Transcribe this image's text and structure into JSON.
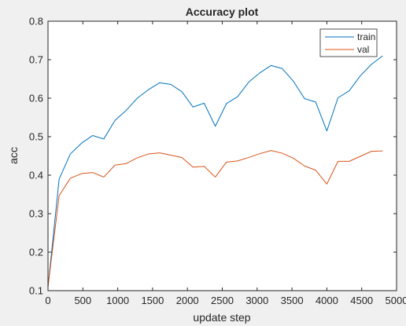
{
  "chart_data": {
    "type": "line",
    "title": "Accuracy plot",
    "xlabel": "update step",
    "ylabel": "acc",
    "xlim": [
      0,
      5000
    ],
    "ylim": [
      0.1,
      0.8
    ],
    "xticks": [
      0,
      500,
      1000,
      1500,
      2000,
      2500,
      3000,
      3500,
      4000,
      4500,
      5000
    ],
    "yticks": [
      0.1,
      0.2,
      0.3,
      0.4,
      0.5,
      0.6,
      0.7,
      0.8
    ],
    "xtick_labels": [
      "0",
      "500",
      "1000",
      "1500",
      "2000",
      "2500",
      "3000",
      "3500",
      "4000",
      "4500",
      "5000"
    ],
    "ytick_labels": [
      "0.1",
      "0.2",
      "0.3",
      "0.4",
      "0.5",
      "0.6",
      "0.7",
      "0.8"
    ],
    "grid": false,
    "legend_position": "top-right",
    "x": [
      0,
      160,
      320,
      480,
      640,
      800,
      960,
      1120,
      1280,
      1440,
      1600,
      1760,
      1920,
      2080,
      2240,
      2400,
      2560,
      2720,
      2880,
      3040,
      3200,
      3360,
      3520,
      3680,
      3840,
      4000,
      4160,
      4320,
      4480,
      4640,
      4800
    ],
    "series": [
      {
        "name": "train",
        "color": "#0072bd",
        "values": [
          0.11,
          0.39,
          0.455,
          0.483,
          0.503,
          0.494,
          0.542,
          0.568,
          0.6,
          0.622,
          0.64,
          0.636,
          0.617,
          0.577,
          0.587,
          0.527,
          0.586,
          0.604,
          0.642,
          0.666,
          0.685,
          0.677,
          0.644,
          0.599,
          0.59,
          0.515,
          0.601,
          0.619,
          0.658,
          0.688,
          0.71
        ]
      },
      {
        "name": "val",
        "color": "#d95319",
        "values": [
          0.11,
          0.347,
          0.392,
          0.404,
          0.407,
          0.395,
          0.426,
          0.43,
          0.445,
          0.455,
          0.458,
          0.452,
          0.446,
          0.421,
          0.423,
          0.395,
          0.434,
          0.437,
          0.446,
          0.456,
          0.464,
          0.457,
          0.444,
          0.424,
          0.413,
          0.377,
          0.436,
          0.436,
          0.449,
          0.462,
          0.463
        ]
      }
    ]
  }
}
